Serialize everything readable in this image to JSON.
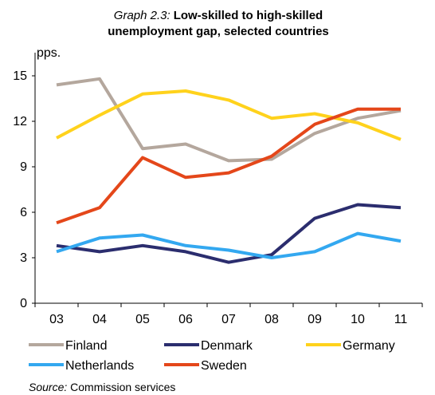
{
  "chart_data": {
    "type": "line",
    "title_prefix": "Graph 2.3:",
    "title_line1": "Low-skilled  to high-skilled",
    "title_line2": "unemployment gap, selected countries",
    "ylabel": "pps.",
    "xlabel": "",
    "categories": [
      "03",
      "04",
      "05",
      "06",
      "07",
      "08",
      "09",
      "10",
      "11"
    ],
    "yticks": [
      "0",
      "3",
      "6",
      "9",
      "12",
      "15"
    ],
    "ylim": [
      0,
      15
    ],
    "grid": false,
    "legend_position": "bottom",
    "series": [
      {
        "name": "Finland",
        "color": "#b4a79d",
        "values": [
          14.4,
          14.8,
          10.2,
          10.5,
          9.4,
          9.5,
          11.2,
          12.2,
          12.7
        ]
      },
      {
        "name": "Denmark",
        "color": "#2b2d6e",
        "values": [
          3.8,
          3.4,
          3.8,
          3.4,
          2.7,
          3.2,
          5.6,
          6.5,
          6.3
        ]
      },
      {
        "name": "Germany",
        "color": "#ffd21c",
        "values": [
          10.9,
          12.4,
          13.8,
          14.0,
          13.4,
          12.2,
          12.5,
          11.9,
          10.8
        ]
      },
      {
        "name": "Netherlands",
        "color": "#33a8f0",
        "values": [
          3.4,
          4.3,
          4.5,
          3.8,
          3.5,
          3.0,
          3.4,
          4.6,
          4.1
        ]
      },
      {
        "name": "Sweden",
        "color": "#e4471a",
        "values": [
          5.3,
          6.3,
          9.6,
          8.3,
          8.6,
          9.7,
          11.8,
          12.8,
          12.8
        ]
      }
    ],
    "source_label": "Source:",
    "source_text": " Commission services"
  }
}
